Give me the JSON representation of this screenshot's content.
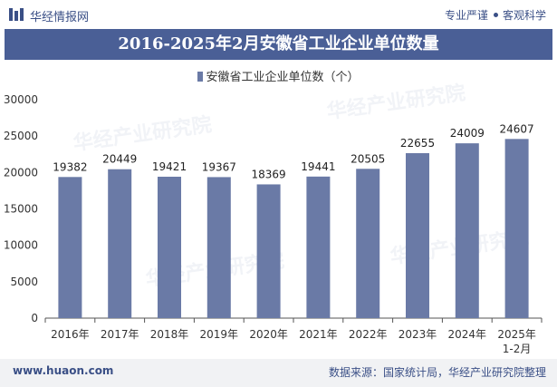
{
  "header": {
    "site_name": "华经情报网",
    "slogan_left": "专业严谨",
    "slogan_right": "客观科学"
  },
  "watermark_text": "华经产业研究院",
  "colors": {
    "brand": "#3a4f86",
    "title_bg": "#4a5f96",
    "bar": "#6a7aa6"
  },
  "chart_data": {
    "type": "bar",
    "title": "2016-2025年2月安徽省工业企业单位数量",
    "categories": [
      "2016年",
      "2017年",
      "2018年",
      "2019年",
      "2020年",
      "2021年",
      "2022年",
      "2023年",
      "2024年",
      "2025年\n1-2月"
    ],
    "series": [
      {
        "name": "安徽省工业企业单位数（个）",
        "values": [
          19382,
          20449,
          19421,
          19367,
          18369,
          19441,
          20505,
          22655,
          24009,
          24607
        ]
      }
    ],
    "ylim": [
      0,
      30000
    ],
    "yticks": [
      0,
      5000,
      10000,
      15000,
      20000,
      25000,
      30000
    ],
    "grid": false,
    "legend": "top-center"
  },
  "footer": {
    "website": "www.huaon.com",
    "source": "数据来源：国家统计局，华经产业研究院整理"
  }
}
